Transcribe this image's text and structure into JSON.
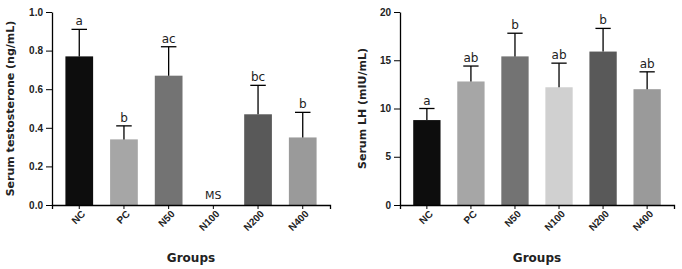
{
  "chart_data": [
    {
      "type": "bar",
      "y_label": "Serum testosterone (ng/mL)",
      "x_label": "Groups",
      "categories": [
        "NC",
        "PC",
        "N50",
        "N100",
        "N200",
        "N400"
      ],
      "values": [
        0.77,
        0.34,
        0.67,
        null,
        0.47,
        0.35
      ],
      "errors": [
        0.14,
        0.07,
        0.15,
        null,
        0.15,
        0.13
      ],
      "significance": [
        "a",
        "b",
        "ac",
        null,
        "bc",
        "b"
      ],
      "annotations": [
        {
          "text": "MS",
          "category": "N100"
        }
      ],
      "colors": [
        "#0d0d0d",
        "#a6a6a6",
        "#737373",
        "#d0d0d0",
        "#595959",
        "#9a9a9a"
      ],
      "ylim": [
        0,
        1.0
      ],
      "yticks": [
        {
          "value": 0,
          "label": "0.0"
        },
        {
          "value": 0.2,
          "label": "0.2"
        },
        {
          "value": 0.4,
          "label": "0.4"
        },
        {
          "value": 0.6,
          "label": "0.6"
        },
        {
          "value": 0.8,
          "label": "0.8"
        },
        {
          "value": 1.0,
          "label": "1.0"
        }
      ],
      "grid": false
    },
    {
      "type": "bar",
      "y_label": "Serum LH (mIU/mL)",
      "x_label": "Groups",
      "categories": [
        "NC",
        "PC",
        "N50",
        "N100",
        "N200",
        "N400"
      ],
      "values": [
        8.8,
        12.8,
        15.4,
        12.2,
        15.9,
        12.0
      ],
      "errors": [
        1.2,
        1.6,
        2.4,
        2.5,
        2.4,
        1.8
      ],
      "significance": [
        "a",
        "ab",
        "b",
        "ab",
        "b",
        "ab"
      ],
      "colors": [
        "#0d0d0d",
        "#a6a6a6",
        "#737373",
        "#d0d0d0",
        "#595959",
        "#9a9a9a"
      ],
      "ylim": [
        0,
        20
      ],
      "yticks": [
        0,
        5,
        10,
        15,
        20
      ],
      "grid": false
    }
  ]
}
